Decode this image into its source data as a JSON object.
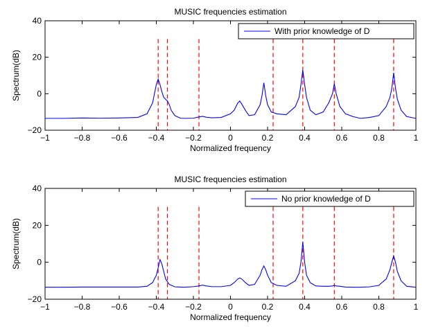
{
  "chart_data": [
    {
      "type": "line",
      "title": "MUSIC frequencies estimation",
      "xlabel": "Normalized frequency",
      "ylabel": "Spectrum(dB)",
      "xlim": [
        -1,
        1
      ],
      "ylim": [
        -20,
        40
      ],
      "xticks": [
        -1,
        -0.8,
        -0.6,
        -0.4,
        -0.2,
        0,
        0.2,
        0.4,
        0.6,
        0.8,
        1
      ],
      "xtick_labels": [
        "−1",
        "−0.8",
        "−0.6",
        "−0.4",
        "−0.2",
        "0",
        "0.2",
        "0.4",
        "0.6",
        "0.8",
        "1"
      ],
      "yticks": [
        -20,
        0,
        20,
        40
      ],
      "ytick_labels": [
        "−20",
        "0",
        "20",
        "40"
      ],
      "grid": false,
      "legend_position": "top-right",
      "series_color": "#0000ff",
      "true_freq_color": "#ff0000",
      "series": [
        {
          "name": "With prior knowledge of D",
          "x": [
            -1,
            -0.9,
            -0.8,
            -0.7,
            -0.6,
            -0.5,
            -0.45,
            -0.42,
            -0.4,
            -0.39,
            -0.38,
            -0.37,
            -0.36,
            -0.35,
            -0.34,
            -0.33,
            -0.32,
            -0.3,
            -0.27,
            -0.24,
            -0.2,
            -0.17,
            -0.15,
            -0.13,
            -0.1,
            -0.05,
            0,
            0.02,
            0.04,
            0.05,
            0.06,
            0.08,
            0.1,
            0.13,
            0.16,
            0.17,
            0.18,
            0.19,
            0.2,
            0.22,
            0.25,
            0.3,
            0.35,
            0.37,
            0.38,
            0.39,
            0.4,
            0.41,
            0.43,
            0.46,
            0.5,
            0.53,
            0.55,
            0.56,
            0.57,
            0.59,
            0.62,
            0.66,
            0.7,
            0.75,
            0.8,
            0.84,
            0.86,
            0.87,
            0.88,
            0.89,
            0.9,
            0.92,
            0.95,
            1
          ],
          "y": [
            -13.5,
            -13.5,
            -13.3,
            -13.4,
            -13.3,
            -13,
            -11,
            -5,
            5,
            8,
            5,
            1,
            -2,
            -3,
            -4,
            -6,
            -9,
            -12,
            -13.4,
            -13.5,
            -13.4,
            -12.7,
            -12.4,
            -12.9,
            -13.2,
            -13,
            -11,
            -9,
            -5,
            -4,
            -5.5,
            -9,
            -12,
            -11.5,
            -6,
            -1,
            6,
            -1,
            -6,
            -10,
            -11,
            -11.5,
            -7,
            -2,
            5,
            13,
            5,
            -2,
            -9,
            -11.5,
            -10,
            -5,
            0,
            5.5,
            0,
            -7,
            -11,
            -12.5,
            -13.5,
            -13,
            -12,
            -7,
            -2,
            3,
            11.5,
            3,
            -3,
            -9,
            -12.5,
            -13.5
          ]
        },
        {
          "name": "No prior knowledge of D",
          "x": [
            -1,
            -0.9,
            -0.8,
            -0.7,
            -0.6,
            -0.5,
            -0.45,
            -0.42,
            -0.4,
            -0.39,
            -0.38,
            -0.37,
            -0.36,
            -0.35,
            -0.33,
            -0.3,
            -0.25,
            -0.2,
            -0.17,
            -0.15,
            -0.13,
            -0.1,
            -0.05,
            0,
            0.02,
            0.04,
            0.05,
            0.06,
            0.08,
            0.1,
            0.13,
            0.16,
            0.17,
            0.18,
            0.19,
            0.2,
            0.22,
            0.25,
            0.3,
            0.35,
            0.37,
            0.38,
            0.39,
            0.4,
            0.41,
            0.43,
            0.46,
            0.5,
            0.53,
            0.55,
            0.56,
            0.57,
            0.59,
            0.62,
            0.66,
            0.7,
            0.75,
            0.8,
            0.84,
            0.86,
            0.87,
            0.88,
            0.89,
            0.9,
            0.92,
            0.95,
            1
          ],
          "y": [
            -13.5,
            -13.5,
            -13.4,
            -13.4,
            -13.4,
            -13.4,
            -13,
            -11,
            -7,
            -3,
            1.5,
            -1,
            -5,
            -9,
            -12,
            -13.3,
            -13.5,
            -13.2,
            -12.8,
            -12.4,
            -12.8,
            -13.2,
            -13.2,
            -12.5,
            -11,
            -9,
            -8.5,
            -9,
            -11,
            -12.5,
            -12,
            -7,
            -4,
            -2,
            -4,
            -7,
            -11,
            -12.5,
            -13,
            -10,
            -6,
            0,
            11,
            0,
            -7,
            -11,
            -12.8,
            -13,
            -13,
            -12.8,
            -12.5,
            -12.8,
            -13,
            -13.4,
            -13.5,
            -13.5,
            -13.3,
            -12.5,
            -9,
            -4,
            0,
            3.5,
            0,
            -5,
            -10,
            -13,
            -13.5
          ]
        }
      ],
      "true_frequencies": [
        -0.39,
        -0.34,
        -0.17,
        0.23,
        0.39,
        0.56,
        0.88
      ]
    },
    {
      "type": "line",
      "title": "MUSIC frequencies estimation",
      "xlabel": "Normalized frequency",
      "ylabel": "Spectrum(dB)",
      "xlim": [
        -1,
        1
      ],
      "ylim": [
        -20,
        40
      ],
      "legend_position": "top-right",
      "grid": false
    }
  ]
}
